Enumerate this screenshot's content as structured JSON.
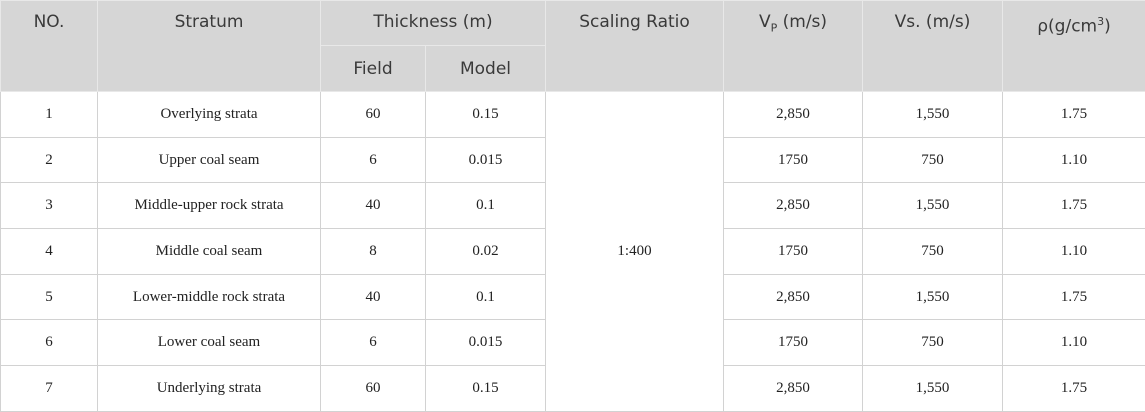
{
  "header": {
    "no": "NO.",
    "stratum": "Stratum",
    "thickness": "Thickness (m)",
    "field": "Field",
    "model": "Model",
    "scaling": "Scaling Ratio",
    "vp": {
      "base": "V",
      "sub": "P",
      "rest": " (m/s)"
    },
    "vs": "Vs. (m/s)",
    "rho": {
      "base": "ρ(g/cm",
      "sup": "3",
      "rest": ")"
    }
  },
  "table": {
    "scaling_ratio": "1:400",
    "rows": [
      [
        "1",
        "Overlying strata",
        "60",
        "0.15",
        "2,850",
        "1,550",
        "1.75"
      ],
      [
        "2",
        "Upper coal seam",
        "6",
        "0.015",
        "1750",
        "750",
        "1.10"
      ],
      [
        "3",
        "Middle-upper rock strata",
        "40",
        "0.1",
        "2,850",
        "1,550",
        "1.75"
      ],
      [
        "4",
        "Middle coal seam",
        "8",
        "0.02",
        "1750",
        "750",
        "1.10"
      ],
      [
        "5",
        "Lower-middle rock strata",
        "40",
        "0.1",
        "2,850",
        "1,550",
        "1.75"
      ],
      [
        "6",
        "Lower coal seam",
        "6",
        "0.015",
        "1750",
        "750",
        "1.10"
      ],
      [
        "7",
        "Underlying strata",
        "60",
        "0.15",
        "2,850",
        "1,550",
        "1.75"
      ]
    ]
  }
}
